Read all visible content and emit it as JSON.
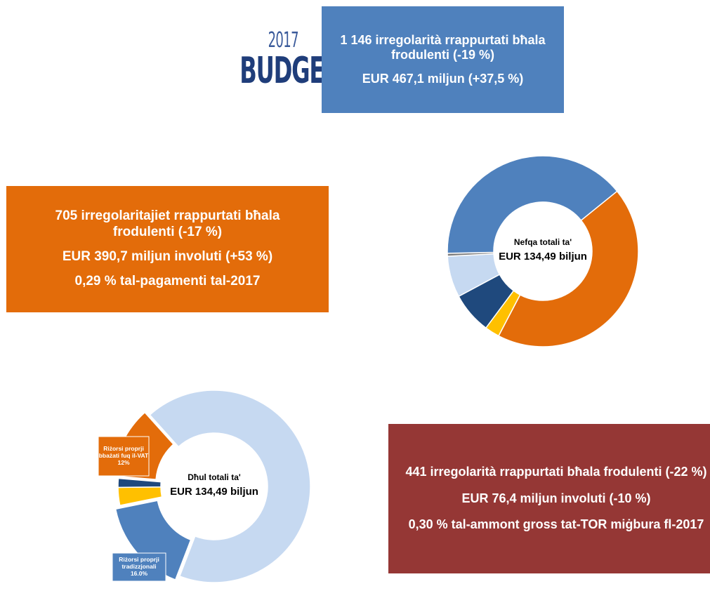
{
  "logo": {
    "year": "2017",
    "word": "BUDGET"
  },
  "boxes": [
    {
      "lines": [
        "1 146 irregolarità rrappurtati bħala frodulenti (-19 %)",
        "EUR 467,1 miljun (+37,5 %)"
      ]
    },
    {
      "lines": [
        "705 irregolaritajiet rrappurtati bħala frodulenti (-17 %)",
        "EUR 390,7 miljun involuti (+53 %)",
        "0,29 % tal-pagamenti tal-2017"
      ]
    },
    {
      "lines": [
        "441 irregolarità rrappurtati bħala frodulenti (-22 %)",
        "EUR 76,4 miljun involuti (-10 %)",
        "0,30 % tal-ammont gross tat-TOR miġbura fl-2017"
      ]
    }
  ],
  "chart_data": [
    {
      "type": "pie",
      "title": "Nefqa totali ta'",
      "subtitle": "EUR 134,49 biljun",
      "categories": [
        null,
        null,
        null,
        null,
        null,
        null
      ],
      "values": [
        43.5,
        2.5,
        7,
        7,
        0.5,
        39.5
      ],
      "colors": [
        "#e36c0a",
        "#ffc000",
        "#1f497d",
        "#c6d9f1",
        "#7f7f7f",
        "#4f81bd"
      ]
    },
    {
      "type": "pie",
      "title": "Dħul totali ta'",
      "subtitle": "EUR 134,49 biljun",
      "categories": [
        null,
        "Riżorsi proprji tradizzjonali",
        null,
        null,
        "Riżorsi proprji bbażati fuq il-VAT"
      ],
      "values": [
        67.5,
        16,
        3,
        1.5,
        12
      ],
      "value_labels": [
        null,
        "16.0%",
        null,
        null,
        "12%"
      ],
      "colors": [
        "#c6d9f1",
        "#4f81bd",
        "#ffc000",
        "#1f497d",
        "#e36c0a"
      ]
    }
  ]
}
